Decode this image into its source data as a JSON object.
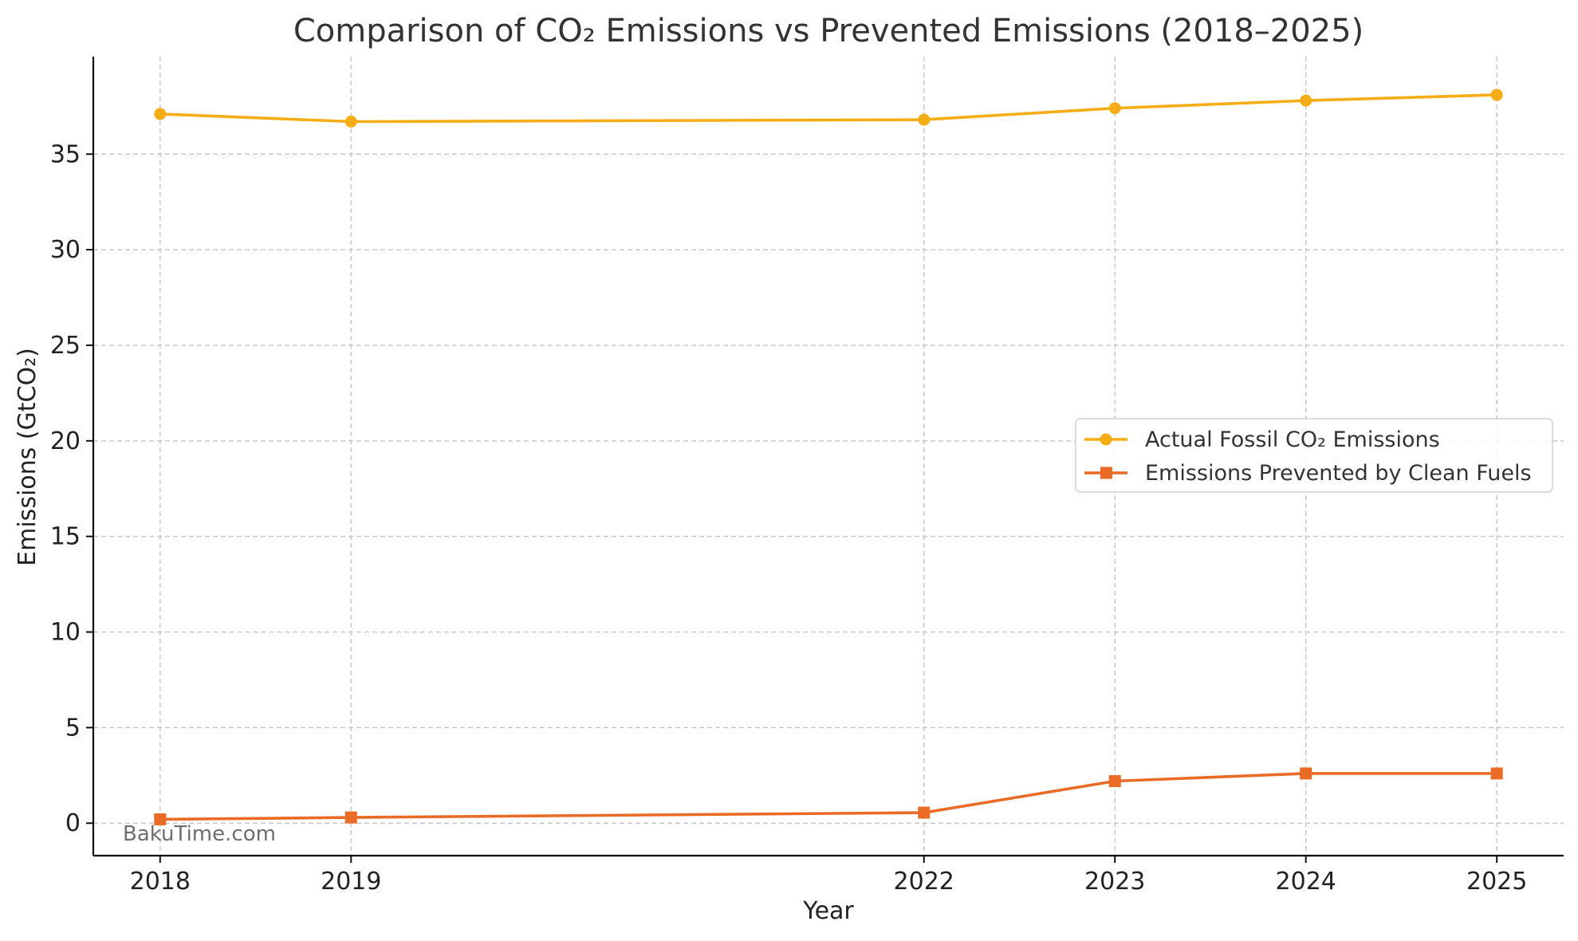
{
  "chart_data": {
    "type": "line",
    "title": "Comparison of CO₂ Emissions vs Prevented Emissions (2018–2025)",
    "xlabel": "Year",
    "ylabel": "Emissions (GtCO₂)",
    "x": [
      2018,
      2019,
      2022,
      2023,
      2024,
      2025
    ],
    "x_tick_labels": [
      "2018",
      "2019",
      "2022",
      "2023",
      "2024",
      "2025"
    ],
    "xlim": [
      2017.65,
      2025.35
    ],
    "ylim": [
      -1.7,
      40.1
    ],
    "y_ticks": [
      0,
      5,
      10,
      15,
      20,
      25,
      30,
      35
    ],
    "y_tick_labels": [
      "0",
      "5",
      "10",
      "15",
      "20",
      "25",
      "30",
      "35"
    ],
    "grid": true,
    "legend_position": "center-right",
    "series": [
      {
        "name": "Actual Fossil CO₂ Emissions",
        "color": "#f5ad16",
        "marker": "circle",
        "values": [
          37.1,
          36.7,
          36.8,
          37.4,
          37.8,
          38.1
        ]
      },
      {
        "name": "Emissions Prevented by Clean Fuels",
        "color": "#ea6b26",
        "marker": "square",
        "values": [
          0.2,
          0.3,
          0.55,
          2.2,
          2.6,
          2.6
        ]
      }
    ],
    "watermark": "BakuTime.com"
  }
}
